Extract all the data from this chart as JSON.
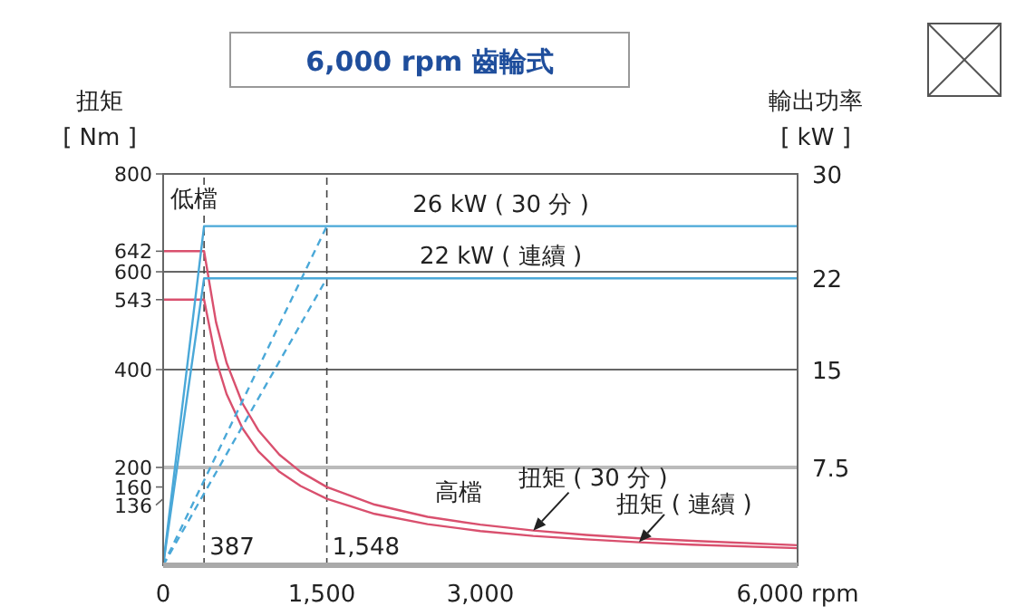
{
  "chart_data": {
    "type": "line",
    "title": "6,000 rpm 齒輪式",
    "ylabel": "扭矩\n[ Nm ]",
    "y2label": "輸出功率\n[ kW ]",
    "xlim": [
      0,
      6000
    ],
    "xticks": [
      0,
      {
        "value": 1500,
        "label": "1,500"
      },
      {
        "value": 3000,
        "label": "3,000"
      },
      {
        "value": 6000,
        "label": "6,000 rpm"
      }
    ],
    "ylim": [
      0,
      800
    ],
    "yticks": [
      136,
      160,
      200,
      400,
      543,
      600,
      642,
      800
    ],
    "y2lim": [
      0,
      30
    ],
    "y2ticks": [
      7.5,
      15,
      22,
      30
    ],
    "series": [
      {
        "name": "扭矩 ( 30 分 )",
        "color": "#d9506e",
        "x": [
          0,
          387,
          500,
          600,
          750,
          900,
          1100,
          1300,
          1548,
          2000,
          2500,
          3000,
          3500,
          4000,
          4500,
          5000,
          6000
        ],
        "values": [
          642,
          642,
          497,
          414,
          331,
          276,
          226,
          191,
          160,
          124,
          99,
          83,
          71,
          62,
          55,
          50,
          41
        ]
      },
      {
        "name": "扭矩 ( 連續 )",
        "color": "#d9506e",
        "x": [
          0,
          387,
          500,
          600,
          750,
          900,
          1100,
          1300,
          1548,
          2000,
          2500,
          3000,
          3500,
          4000,
          4500,
          5000,
          6000
        ],
        "values": [
          543,
          543,
          420,
          350,
          280,
          233,
          191,
          162,
          136,
          105,
          84,
          70,
          60,
          53,
          47,
          42,
          35
        ]
      },
      {
        "name": "26 kW ( 30 分 )",
        "color": "#4aa8d8",
        "axis": "y2",
        "x": [
          0,
          387,
          6000
        ],
        "values": [
          0,
          26,
          26
        ]
      },
      {
        "name": "22 kW ( 連續 )",
        "color": "#4aa8d8",
        "axis": "y2",
        "x": [
          0,
          387,
          6000
        ],
        "values": [
          0,
          22,
          22
        ]
      },
      {
        "color": "#4aa8d8",
        "axis": "y2",
        "line_style": "dashed",
        "x": [
          0,
          1548
        ],
        "values": [
          0,
          26
        ]
      },
      {
        "color": "#4aa8d8",
        "axis": "y2",
        "line_style": "dashed",
        "x": [
          0,
          1548
        ],
        "values": [
          0,
          22
        ]
      }
    ],
    "ref_lines": [
      {
        "axis": "y",
        "value": 200,
        "color": "#bbbbbb"
      },
      {
        "axis": "y",
        "value": 400,
        "color": "#666666"
      },
      {
        "axis": "y",
        "value": 600,
        "color": "#666666"
      },
      {
        "axis": "x",
        "value": 387,
        "label": "387",
        "color": "#444444",
        "line_style": "dashed"
      },
      {
        "axis": "x",
        "value": 1548,
        "label": "1,548",
        "color": "#444444",
        "line_style": "dashed"
      }
    ],
    "annotations": [
      "低檔",
      "高檔"
    ]
  }
}
